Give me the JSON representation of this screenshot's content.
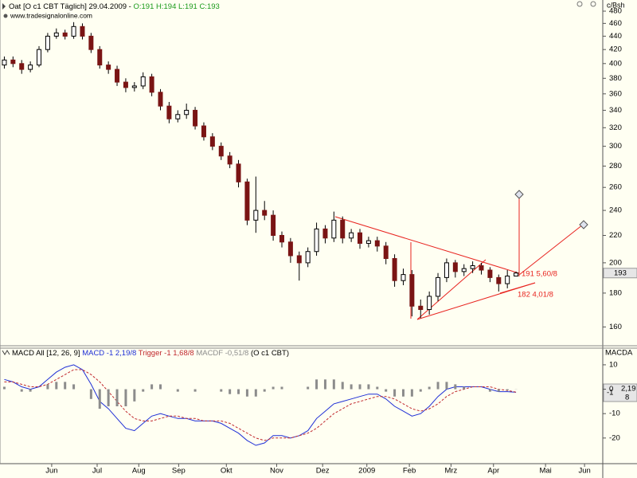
{
  "chart_data": [
    {
      "type": "candlestick",
      "title": "Oat [O c1 CBT  Täglich] 29.04.2009 -",
      "ohlc_labels": [
        "O:191",
        "H:194",
        "L:191",
        "C:193"
      ],
      "source": "www.tradesignalonline.com",
      "y_unit": "c/Bsh",
      "log_scale": true,
      "xlim": [
        -0.5,
        69
      ],
      "ylim": [
        150.7,
        499
      ],
      "yticks": [
        160,
        180,
        200,
        220,
        240,
        260,
        280,
        300,
        320,
        340,
        360,
        380,
        400,
        420,
        440,
        460,
        480
      ],
      "open": [
        398,
        405,
        400,
        392,
        398,
        420,
        440,
        445,
        440,
        455,
        440,
        420,
        398,
        392,
        375,
        368,
        370,
        382,
        362,
        345,
        330,
        335,
        340,
        322,
        310,
        300,
        290,
        282,
        265,
        232,
        240,
        236,
        220,
        215,
        205,
        200,
        208,
        225,
        218,
        232,
        218,
        222,
        214,
        216,
        212,
        203,
        188,
        192,
        172,
        170,
        178,
        190,
        200,
        194,
        196,
        198,
        195,
        190,
        186,
        191
      ],
      "high": [
        410,
        410,
        405,
        403,
        425,
        445,
        452,
        450,
        462,
        460,
        445,
        425,
        403,
        397,
        380,
        375,
        388,
        386,
        366,
        350,
        340,
        348,
        344,
        326,
        314,
        304,
        294,
        286,
        268,
        270,
        248,
        240,
        223,
        218,
        208,
        211,
        230,
        228,
        239,
        235,
        225,
        225,
        219,
        219,
        215,
        206,
        196,
        195,
        176,
        181,
        193,
        203,
        202,
        199,
        201,
        200,
        197,
        192,
        195,
        194
      ],
      "low": [
        393,
        395,
        386,
        388,
        395,
        416,
        436,
        435,
        436,
        435,
        415,
        393,
        386,
        370,
        362,
        363,
        366,
        357,
        340,
        325,
        326,
        330,
        318,
        306,
        296,
        286,
        278,
        260,
        228,
        222,
        232,
        216,
        211,
        200,
        188,
        197,
        205,
        214,
        215,
        214,
        215,
        210,
        211,
        208,
        199,
        184,
        185,
        166,
        165,
        167,
        175,
        187,
        190,
        191,
        193,
        192,
        187,
        181,
        183,
        191
      ],
      "close": [
        405,
        400,
        392,
        398,
        420,
        440,
        445,
        440,
        455,
        440,
        420,
        398,
        392,
        375,
        368,
        370,
        382,
        362,
        345,
        330,
        335,
        340,
        322,
        310,
        300,
        290,
        282,
        265,
        232,
        240,
        236,
        220,
        215,
        205,
        200,
        208,
        225,
        218,
        232,
        218,
        222,
        214,
        216,
        212,
        203,
        188,
        192,
        172,
        170,
        178,
        190,
        200,
        194,
        196,
        198,
        195,
        190,
        186,
        191,
        193
      ],
      "up_color": "#ffffff",
      "down_color": "#7a1414",
      "last_price": 193,
      "annotations": [
        "191 5,60/8",
        "182 4,01/8"
      ]
    },
    {
      "type": "macd",
      "title": "MACD All [12, 26, 9]",
      "source_label": "(O c1 CBT)",
      "y_label": "MACDA",
      "last_value_label": [
        "-1",
        "2,19",
        "8"
      ],
      "xlim": [
        -0.5,
        69
      ],
      "ylim": [
        -30.5,
        16.5
      ],
      "yticks": [
        10,
        0,
        -10,
        -20
      ],
      "xticks": [
        {
          "value": 5.46,
          "label": "Jun"
        },
        {
          "value": 10.7,
          "label": "Jul"
        },
        {
          "value": 15.5,
          "label": "Aug"
        },
        {
          "value": 20.1,
          "label": "Sep"
        },
        {
          "value": 25.6,
          "label": "Okt"
        },
        {
          "value": 31.4,
          "label": "Nov"
        },
        {
          "value": 36.7,
          "label": "Dez"
        },
        {
          "value": 41.8,
          "label": "2009"
        },
        {
          "value": 46.7,
          "label": "Feb"
        },
        {
          "value": 51.5,
          "label": "Mrz"
        },
        {
          "value": 56.4,
          "label": "Apr"
        },
        {
          "value": 62.4,
          "label": "Mai"
        },
        {
          "value": 66.9,
          "label": "Jun"
        }
      ],
      "series": [
        {
          "name": "MACD -1 2,19/8",
          "color": "#1f2fd6",
          "style": "line",
          "values": [
            4,
            3,
            1,
            0,
            1,
            4,
            7,
            9,
            10,
            8,
            2,
            -5,
            -8,
            -12,
            -16,
            -17,
            -14,
            -11,
            -10,
            -11,
            -12,
            -12,
            -13,
            -13,
            -13,
            -14,
            -16,
            -18,
            -21,
            -23,
            -22,
            -19,
            -19,
            -20,
            -19,
            -17,
            -12,
            -9,
            -6,
            -5,
            -4,
            -3,
            -2,
            -2,
            -4,
            -7,
            -9,
            -11,
            -10,
            -7,
            -3,
            0,
            1,
            1,
            1,
            1,
            0,
            -1,
            -1,
            -1.27
          ]
        },
        {
          "name": "Trigger -1 1,68/8",
          "color": "#c0282d",
          "style": "dashed",
          "values": [
            3,
            3,
            2,
            1,
            1,
            2,
            4,
            6,
            8,
            8,
            6,
            3,
            -1,
            -5,
            -9,
            -12,
            -13,
            -13,
            -12,
            -11,
            -11,
            -12,
            -12,
            -13,
            -13,
            -13,
            -14,
            -16,
            -18,
            -20,
            -21,
            -20,
            -20,
            -20,
            -19,
            -18,
            -16,
            -13,
            -10,
            -8,
            -6,
            -5,
            -4,
            -3,
            -3,
            -4,
            -6,
            -8,
            -9,
            -8,
            -6,
            -3,
            -1,
            0,
            1,
            1,
            1,
            0,
            -0.5,
            -1.21
          ]
        },
        {
          "name": "MACDF -0,51/8",
          "color": "#8c8c8c",
          "style": "histogram",
          "values": [
            1,
            0,
            -1,
            -1,
            0,
            2,
            3,
            3,
            2,
            0,
            -4,
            -8,
            -7,
            -7,
            -7,
            -5,
            -1,
            2,
            2,
            0,
            -1,
            0,
            -1,
            0,
            0,
            -1,
            -2,
            -2,
            -3,
            -3,
            -1,
            1,
            1,
            0,
            0,
            1,
            4,
            4,
            4,
            3,
            2,
            2,
            2,
            1,
            -1,
            -3,
            -3,
            -3,
            -1,
            1,
            3,
            3,
            2,
            1,
            0,
            0,
            -1,
            -1,
            -0.5,
            -0.06
          ]
        }
      ]
    }
  ]
}
